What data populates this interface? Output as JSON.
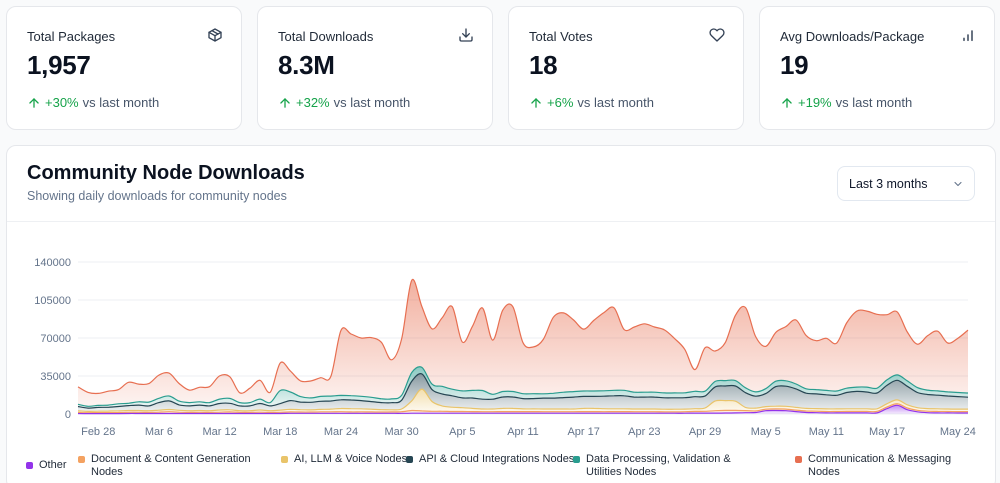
{
  "stats": [
    {
      "label": "Total Packages",
      "value": "1,957",
      "trend": "+30%",
      "trend_suffix": "vs last month",
      "icon": "package-icon"
    },
    {
      "label": "Total Downloads",
      "value": "8.3M",
      "trend": "+32%",
      "trend_suffix": "vs last month",
      "icon": "download-icon"
    },
    {
      "label": "Total Votes",
      "value": "18",
      "trend": "+6%",
      "trend_suffix": "vs last month",
      "icon": "heart-icon"
    },
    {
      "label": "Avg Downloads/Package",
      "value": "19",
      "trend": "+19%",
      "trend_suffix": "vs last month",
      "icon": "bar-chart-icon"
    }
  ],
  "chart_card": {
    "title": "Community Node Downloads",
    "subtitle": "Showing daily downloads for community nodes",
    "range_select": "Last 3 months"
  },
  "colors": {
    "trend_up": "#16a34a",
    "other": "#9333ea",
    "document": "#f4a261",
    "ai": "#e9c46a",
    "api": "#264653",
    "data": "#2a9d8f",
    "communication": "#e76f51"
  },
  "chart_data": {
    "type": "area",
    "stacked": true,
    "ylim": [
      0,
      140000
    ],
    "yticks": [
      0,
      35000,
      70000,
      105000,
      140000
    ],
    "xticks": [
      "Feb 28",
      "Mar 6",
      "Mar 12",
      "Mar 18",
      "Mar 24",
      "Mar 30",
      "Apr 5",
      "Apr 11",
      "Apr 17",
      "Apr 23",
      "Apr 29",
      "May 5",
      "May 11",
      "May 17",
      "May 24"
    ],
    "x": [
      "Feb 26",
      "Feb 27",
      "Feb 28",
      "Mar 1",
      "Mar 2",
      "Mar 3",
      "Mar 4",
      "Mar 5",
      "Mar 6",
      "Mar 7",
      "Mar 8",
      "Mar 9",
      "Mar 10",
      "Mar 11",
      "Mar 12",
      "Mar 13",
      "Mar 14",
      "Mar 15",
      "Mar 16",
      "Mar 17",
      "Mar 18",
      "Mar 19",
      "Mar 20",
      "Mar 21",
      "Mar 22",
      "Mar 23",
      "Mar 24",
      "Mar 25",
      "Mar 26",
      "Mar 27",
      "Mar 28",
      "Mar 29",
      "Mar 30",
      "Mar 31",
      "Apr 1",
      "Apr 2",
      "Apr 3",
      "Apr 4",
      "Apr 5",
      "Apr 6",
      "Apr 7",
      "Apr 8",
      "Apr 9",
      "Apr 10",
      "Apr 11",
      "Apr 12",
      "Apr 13",
      "Apr 14",
      "Apr 15",
      "Apr 16",
      "Apr 17",
      "Apr 18",
      "Apr 19",
      "Apr 20",
      "Apr 21",
      "Apr 22",
      "Apr 23",
      "Apr 24",
      "Apr 25",
      "Apr 26",
      "Apr 27",
      "Apr 28",
      "Apr 29",
      "Apr 30",
      "May 1",
      "May 2",
      "May 3",
      "May 4",
      "May 5",
      "May 6",
      "May 7",
      "May 8",
      "May 9",
      "May 10",
      "May 11",
      "May 12",
      "May 13",
      "May 14",
      "May 15",
      "May 16",
      "May 17",
      "May 18",
      "May 19",
      "May 20",
      "May 21",
      "May 22",
      "May 23",
      "May 24",
      "May 25"
    ],
    "series": [
      {
        "name": "Other",
        "color": "#9333ea",
        "values": [
          400,
          400,
          400,
          400,
          400,
          500,
          500,
          500,
          500,
          500,
          500,
          500,
          500,
          500,
          500,
          500,
          500,
          500,
          500,
          500,
          500,
          600,
          600,
          600,
          600,
          600,
          600,
          600,
          600,
          600,
          600,
          600,
          600,
          700,
          700,
          700,
          700,
          700,
          700,
          700,
          700,
          700,
          700,
          700,
          700,
          700,
          700,
          700,
          700,
          700,
          700,
          700,
          700,
          700,
          700,
          700,
          700,
          700,
          700,
          700,
          700,
          800,
          800,
          800,
          900,
          1000,
          1200,
          1400,
          3000,
          3200,
          3000,
          2200,
          1400,
          1200,
          1000,
          1000,
          1000,
          1000,
          1000,
          1000,
          5000,
          8000,
          4000,
          2000,
          1200,
          1000,
          1000,
          900,
          900
        ]
      },
      {
        "name": "Document & Content Generation Nodes",
        "color": "#f4a261",
        "values": [
          1000,
          800,
          900,
          900,
          1000,
          1100,
          1100,
          1000,
          1200,
          1600,
          1200,
          1000,
          1100,
          1000,
          1200,
          1400,
          1000,
          1000,
          1200,
          1000,
          1100,
          1300,
          1200,
          1200,
          1400,
          1400,
          1500,
          1300,
          1400,
          1300,
          1200,
          1300,
          1500,
          2500,
          2200,
          1800,
          1800,
          1600,
          1600,
          1500,
          1400,
          1400,
          1500,
          1500,
          1500,
          1500,
          1400,
          1400,
          1400,
          1400,
          1500,
          1500,
          1400,
          1500,
          1500,
          1400,
          1400,
          1400,
          1300,
          1300,
          1400,
          1600,
          1700,
          2200,
          2400,
          2300,
          1900,
          1500,
          1400,
          1500,
          1500,
          1400,
          1400,
          1400,
          1300,
          1300,
          1400,
          1400,
          1400,
          1400,
          1500,
          1500,
          1500,
          1400,
          1400,
          1400,
          1300,
          1300,
          1300
        ]
      },
      {
        "name": "AI, LLM & Voice Nodes",
        "color": "#e9c46a",
        "values": [
          1500,
          1200,
          1300,
          1400,
          1500,
          1600,
          1600,
          1500,
          1800,
          2000,
          1700,
          1500,
          1600,
          1500,
          2000,
          2000,
          1500,
          1500,
          2000,
          1500,
          2000,
          2400,
          2200,
          2000,
          2200,
          2500,
          3000,
          3000,
          2800,
          2500,
          2200,
          2000,
          2500,
          9000,
          20000,
          9000,
          5000,
          4000,
          3500,
          3000,
          2500,
          2500,
          3000,
          3000,
          2500,
          2500,
          2500,
          2500,
          2500,
          2500,
          3000,
          3000,
          2800,
          2600,
          2600,
          2500,
          2500,
          2500,
          2400,
          2400,
          2400,
          2500,
          3000,
          9000,
          9000,
          8500,
          3000,
          2500,
          2400,
          2500,
          2600,
          2500,
          2400,
          2400,
          2400,
          2400,
          2400,
          2400,
          2400,
          2400,
          3000,
          3500,
          3000,
          2400,
          2400,
          2400,
          2300,
          2300,
          2300
        ]
      },
      {
        "name": "API & Cloud Integrations Nodes",
        "color": "#264653",
        "values": [
          4000,
          3000,
          3500,
          3500,
          4000,
          4500,
          5000,
          4500,
          7000,
          8000,
          5000,
          4500,
          5000,
          4500,
          6000,
          6000,
          4500,
          4500,
          6000,
          4500,
          6000,
          8000,
          7000,
          7000,
          7500,
          7500,
          8000,
          8000,
          7500,
          7000,
          6500,
          6500,
          8000,
          18000,
          14000,
          11000,
          11000,
          10500,
          9000,
          9500,
          9000,
          9000,
          10500,
          10500,
          9500,
          9500,
          10000,
          10000,
          10500,
          11000,
          11000,
          11000,
          11500,
          12000,
          12000,
          11000,
          11000,
          11000,
          10500,
          10500,
          10500,
          11000,
          11000,
          13000,
          13500,
          14000,
          13500,
          11000,
          12000,
          18000,
          18500,
          17000,
          14000,
          13500,
          13000,
          12500,
          15000,
          16000,
          15500,
          14500,
          17000,
          18000,
          17000,
          14000,
          13000,
          12500,
          12000,
          11500,
          11000
        ]
      },
      {
        "name": "Data Processing, Validation & Utilities Nodes",
        "color": "#2a9d8f",
        "values": [
          2000,
          1700,
          1800,
          2000,
          2500,
          2200,
          3000,
          3500,
          4000,
          4500,
          3500,
          3000,
          3000,
          3000,
          4000,
          4500,
          3000,
          3000,
          4000,
          3000,
          12000,
          8000,
          5000,
          4000,
          4500,
          4500,
          4000,
          4000,
          4000,
          4000,
          3500,
          3500,
          4500,
          8000,
          6000,
          5000,
          7000,
          6000,
          6500,
          7000,
          8000,
          4500,
          5000,
          5000,
          4500,
          4500,
          4000,
          4500,
          5000,
          5000,
          5000,
          5000,
          5000,
          5000,
          5000,
          4500,
          4500,
          4500,
          4500,
          4500,
          4500,
          5000,
          4500,
          5000,
          5000,
          5000,
          4500,
          4000,
          4500,
          5000,
          5000,
          4500,
          4000,
          4000,
          4000,
          4000,
          4000,
          4000,
          4500,
          4500,
          5000,
          5000,
          5000,
          4500,
          4000,
          4000,
          3800,
          3800,
          3800
        ]
      },
      {
        "name": "Communication & Messaging Nodes",
        "color": "#e76f51",
        "values": [
          16100,
          12800,
          11100,
          12800,
          13100,
          19300,
          16300,
          17000,
          21300,
          21100,
          16200,
          11500,
          13400,
          14600,
          21400,
          20000,
          9000,
          13300,
          17300,
          9500,
          25500,
          19200,
          14500,
          15600,
          17200,
          18000,
          59900,
          56800,
          53700,
          55000,
          52000,
          36000,
          52000,
          85000,
          56000,
          51000,
          63000,
          76000,
          45000,
          59000,
          76000,
          50000,
          75000,
          78000,
          47000,
          43000,
          50000,
          70000,
          73000,
          66000,
          57000,
          65000,
          72000,
          76000,
          56000,
          60000,
          63000,
          60000,
          58000,
          50000,
          40000,
          20000,
          40000,
          28000,
          35000,
          60000,
          74000,
          51000,
          39000,
          45000,
          50000,
          59000,
          49000,
          45000,
          48000,
          44000,
          60000,
          70000,
          70000,
          68000,
          60000,
          58000,
          45000,
          40000,
          50000,
          55000,
          45000,
          50000,
          58000
        ]
      }
    ]
  }
}
